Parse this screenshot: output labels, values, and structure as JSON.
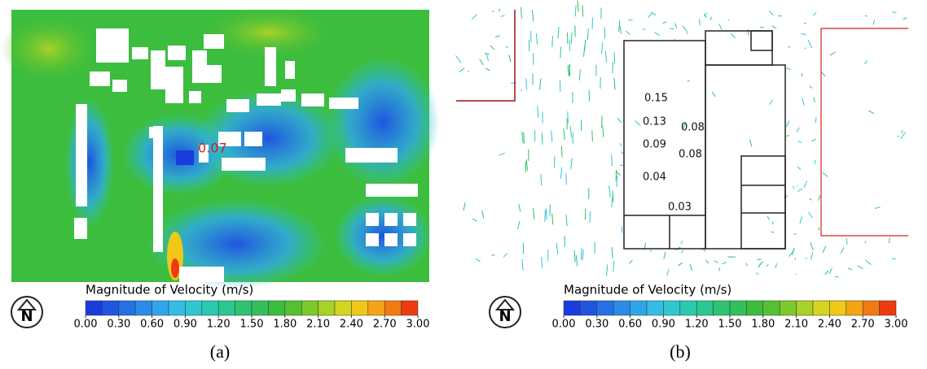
{
  "colormap": [
    "#1a3cdc",
    "#1f55e0",
    "#2470e4",
    "#2a8ce8",
    "#2fa6ea",
    "#35bde6",
    "#2fc8d0",
    "#2bc9b0",
    "#2ac890",
    "#2ec472",
    "#33c05a",
    "#3cbd3e",
    "#55c132",
    "#7cc92c",
    "#a8d226",
    "#d4d61e",
    "#f0c818",
    "#f4a414",
    "#f27a12",
    "#ee3a10"
  ],
  "panels": [
    {
      "label": "(a)",
      "north": "N",
      "colorbar": {
        "title": "Magnitude of Velocity (m/s)",
        "ticks": [
          {
            "value": 0,
            "label": "0.00"
          },
          {
            "value": 0.3,
            "label": "0.30"
          },
          {
            "value": 0.6,
            "label": "0.60"
          },
          {
            "value": 0.9,
            "label": "0.90"
          },
          {
            "value": 1.2,
            "label": "1.20"
          },
          {
            "value": 1.5,
            "label": "1.50"
          },
          {
            "value": 1.8,
            "label": "1.80"
          },
          {
            "value": 2.1,
            "label": "2.10"
          },
          {
            "value": 2.4,
            "label": "2.40"
          },
          {
            "value": 2.7,
            "label": "2.70"
          },
          {
            "value": 3,
            "label": "3.00"
          }
        ]
      },
      "annotations": [
        "0.07"
      ]
    },
    {
      "label": "(b)",
      "north": "N",
      "colorbar": {
        "title": "Magnitude of Velocity (m/s)",
        "ticks": [
          {
            "value": 0,
            "label": "0.00"
          },
          {
            "value": 0.3,
            "label": "0.30"
          },
          {
            "value": 0.6,
            "label": "0.60"
          },
          {
            "value": 0.9,
            "label": "0.90"
          },
          {
            "value": 1.2,
            "label": "1.20"
          },
          {
            "value": 1.5,
            "label": "1.50"
          },
          {
            "value": 1.8,
            "label": "1.80"
          },
          {
            "value": 2.1,
            "label": "2.10"
          },
          {
            "value": 2.4,
            "label": "2.40"
          },
          {
            "value": 2.7,
            "label": "2.70"
          },
          {
            "value": 3,
            "label": "3.00"
          }
        ]
      },
      "annotations": [
        "0.15",
        "0.13",
        "0.08",
        "0.09",
        "0.08",
        "0.04",
        "0.03"
      ]
    }
  ]
}
